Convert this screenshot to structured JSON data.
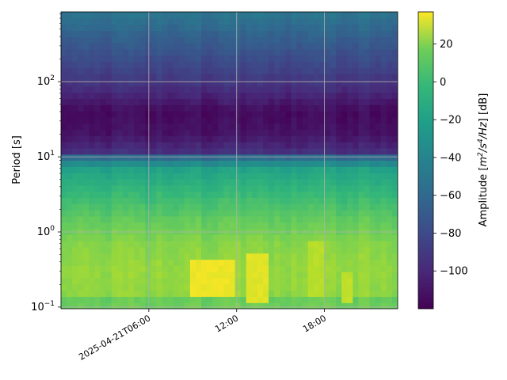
{
  "chart_data": {
    "type": "heatmap",
    "xlabel": "",
    "ylabel": "Period [s]",
    "yscale": "log",
    "ylim": [
      0.095,
      850
    ],
    "xlim": [
      "2025-04-21T00:00",
      "2025-04-21T23:00"
    ],
    "x_ticks": [
      {
        "value": "2025-04-21T06:00",
        "label": "2025-04-21T06:00"
      },
      {
        "value": "2025-04-21T12:00",
        "label": "12:00"
      },
      {
        "value": "2025-04-21T18:00",
        "label": "18:00"
      }
    ],
    "y_ticks": [
      {
        "value": 0.1,
        "base": "10",
        "exp": "−1"
      },
      {
        "value": 1,
        "base": "10",
        "exp": "0"
      },
      {
        "value": 10,
        "base": "10",
        "exp": "1"
      },
      {
        "value": 100,
        "base": "10",
        "exp": "2"
      }
    ],
    "grid": true,
    "colorbar": {
      "label_prefix": "Amplitude [",
      "label_unit_base": "m",
      "label_exp1": "2",
      "label_mid": "/s",
      "label_exp2": "4",
      "label_tail": "/Hz] [dB]",
      "range": [
        -120,
        37
      ],
      "colormap": "viridis",
      "ticks": [
        20,
        0,
        -20,
        -40,
        -60,
        -80,
        -100
      ],
      "tick_labels": [
        "20",
        "0",
        "−20",
        "−40",
        "−60",
        "−80",
        "−100"
      ]
    },
    "period_profile": [
      {
        "period": 0.095,
        "db": 2
      },
      {
        "period": 0.13,
        "db": 0
      },
      {
        "period": 0.15,
        "db": 10
      },
      {
        "period": 0.3,
        "db": 12
      },
      {
        "period": 0.7,
        "db": 8
      },
      {
        "period": 1.0,
        "db": 3
      },
      {
        "period": 1.5,
        "db": -2
      },
      {
        "period": 3.0,
        "db": -14
      },
      {
        "period": 7.0,
        "db": -30
      },
      {
        "period": 9.5,
        "db": -58
      },
      {
        "period": 12,
        "db": -100
      },
      {
        "period": 20,
        "db": -112
      },
      {
        "period": 40,
        "db": -116
      },
      {
        "period": 80,
        "db": -100
      },
      {
        "period": 150,
        "db": -88
      },
      {
        "period": 400,
        "db": -72
      },
      {
        "period": 850,
        "db": -58
      }
    ],
    "hotspots": [
      {
        "t_start": "2025-04-21T09:00",
        "t_end": "2025-04-21T11:50",
        "p_min": 0.15,
        "p_max": 0.45,
        "db": 33
      },
      {
        "t_start": "2025-04-21T12:45",
        "t_end": "2025-04-21T14:00",
        "p_min": 0.12,
        "p_max": 0.5,
        "db": 30
      },
      {
        "t_start": "2025-04-21T17:00",
        "t_end": "2025-04-21T18:00",
        "p_min": 0.15,
        "p_max": 0.7,
        "db": 20
      },
      {
        "t_start": "2025-04-21T19:00",
        "t_end": "2025-04-21T20:00",
        "p_min": 0.12,
        "p_max": 0.3,
        "db": 22
      }
    ]
  }
}
